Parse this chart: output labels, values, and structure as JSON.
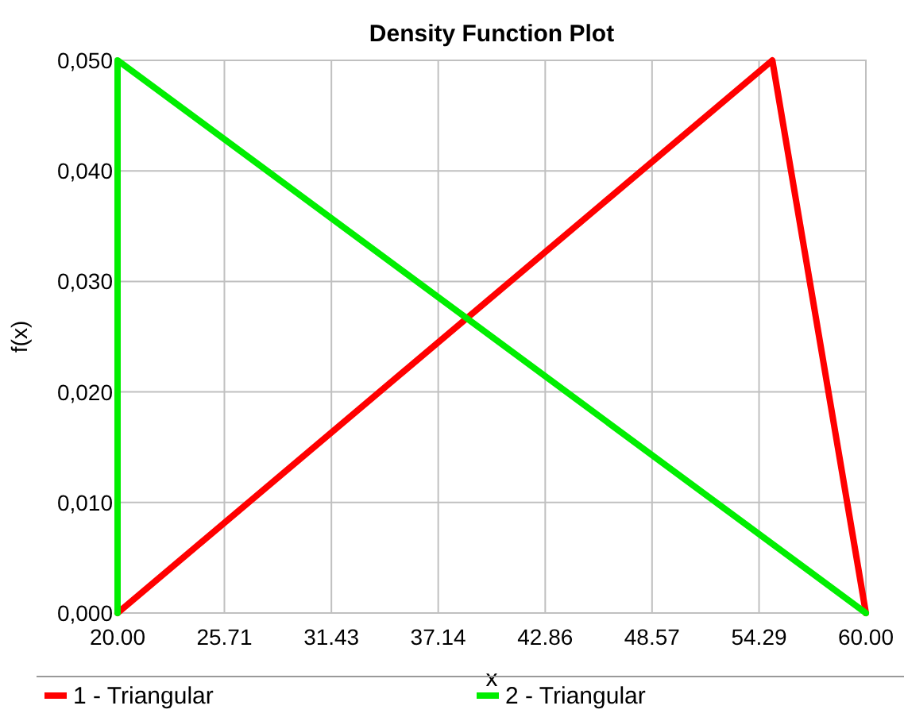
{
  "chart_data": {
    "type": "line",
    "title": "Density Function Plot",
    "xlabel": "x",
    "ylabel": "f(x)",
    "xlim": [
      20,
      60
    ],
    "xticks": [
      {
        "value": 20,
        "label": "20.00"
      },
      {
        "value": 25.71,
        "label": "25.71"
      },
      {
        "value": 31.43,
        "label": "31.43"
      },
      {
        "value": 37.14,
        "label": "37.14"
      },
      {
        "value": 42.86,
        "label": "42.86"
      },
      {
        "value": 48.57,
        "label": "48.57"
      },
      {
        "value": 54.29,
        "label": "54.29"
      },
      {
        "value": 60,
        "label": "60.00"
      }
    ],
    "ylim": [
      0,
      0.05
    ],
    "yticks": [
      {
        "value": 0,
        "label": "0,000"
      },
      {
        "value": 0.01,
        "label": "0,010"
      },
      {
        "value": 0.02,
        "label": "0,020"
      },
      {
        "value": 0.03,
        "label": "0,030"
      },
      {
        "value": 0.04,
        "label": "0,040"
      },
      {
        "value": 0.05,
        "label": "0,050"
      }
    ],
    "grid": true,
    "legend": "bottom",
    "line_style": "solid",
    "series": [
      {
        "name": "1 - Triangular",
        "color": "#ff0000",
        "x": [
          20,
          55,
          60
        ],
        "values": [
          0,
          0.05,
          0
        ]
      },
      {
        "name": "2 - Triangular",
        "color": "#00ee00",
        "x": [
          20,
          20,
          60
        ],
        "values": [
          0,
          0.05,
          0
        ]
      }
    ]
  }
}
